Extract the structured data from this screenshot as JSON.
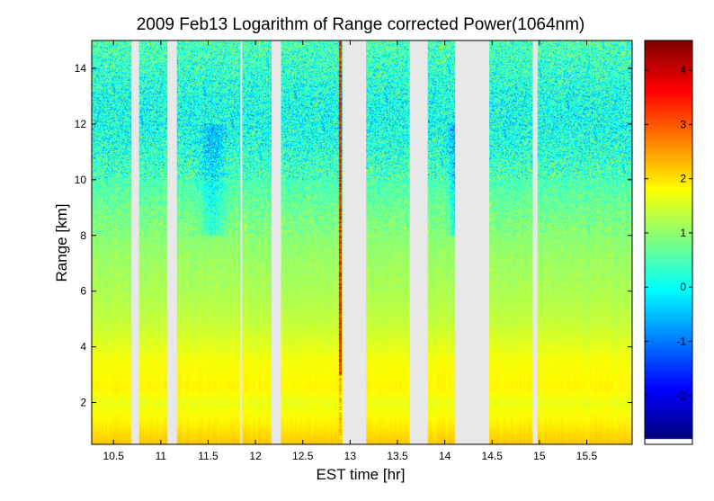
{
  "chart_data": {
    "type": "heatmap",
    "title": "2009 Feb13  Logarithm of Range corrected Power(1064nm)",
    "xlabel": "EST time [hr]",
    "ylabel": "Range [km]",
    "xlim": [
      10.27,
      15.98
    ],
    "ylim": [
      0.5,
      15
    ],
    "x_ticks": [
      "10.5",
      "11",
      "11.5",
      "12",
      "12.5",
      "13",
      "13.5",
      "14",
      "14.5",
      "15",
      "15.5"
    ],
    "x_tick_values": [
      10.5,
      11,
      11.5,
      12,
      12.5,
      13,
      13.5,
      14,
      14.5,
      15,
      15.5
    ],
    "y_ticks": [
      "2",
      "4",
      "6",
      "8",
      "10",
      "12",
      "14"
    ],
    "y_tick_values": [
      2,
      4,
      6,
      8,
      10,
      12,
      14
    ],
    "colorbar": {
      "min": -2.8,
      "max": 4.55,
      "ticks": [
        "-2",
        "-1",
        "0",
        "1",
        "2",
        "3",
        "4"
      ],
      "tick_values": [
        -2,
        -1,
        0,
        1,
        2,
        3,
        4
      ],
      "colormap": "jet"
    },
    "data_gaps_hr": [
      [
        10.69,
        10.77
      ],
      [
        11.07,
        11.17
      ],
      [
        11.84,
        11.86
      ],
      [
        12.17,
        12.27
      ],
      [
        12.92,
        13.17
      ],
      [
        13.63,
        13.82
      ],
      [
        14.11,
        14.47
      ],
      [
        14.93,
        14.98
      ]
    ],
    "highlight_columns_hr": [
      12.9
    ],
    "gap_color": "#e8e8e8",
    "background_profile": {
      "range_km": [
        0.5,
        1.2,
        2.0,
        2.5,
        3.5,
        4.0,
        5.0,
        6.0,
        7.0,
        8.0,
        9.0,
        10.0,
        11.0,
        12.0,
        13.0,
        15.0
      ],
      "log_power": [
        2.2,
        1.9,
        1.65,
        1.85,
        1.75,
        1.6,
        1.35,
        1.2,
        1.1,
        0.95,
        0.75,
        0.5,
        0.25,
        0.1,
        0.15,
        0.5
      ]
    }
  }
}
